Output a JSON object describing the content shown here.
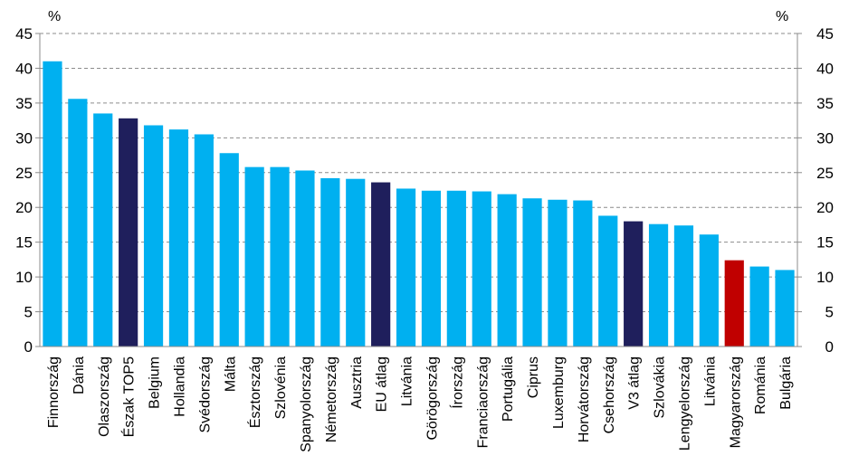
{
  "chart_data": {
    "type": "bar",
    "left_axis_unit": "%",
    "right_axis_unit": "%",
    "ylim": [
      0,
      45
    ],
    "yticks": [
      0,
      5,
      10,
      15,
      20,
      25,
      30,
      35,
      40,
      45
    ],
    "grid": "horizontal dashed",
    "categories": [
      "Finnország",
      "Dánia",
      "Olaszország",
      "Észak TOP5",
      "Belgium",
      "Hollandia",
      "Svédország",
      "Málta",
      "Észtország",
      "Szlovénia",
      "Spanyolország",
      "Németország",
      "Ausztria",
      "EU átlag",
      "Litvánia",
      "Görögország",
      "Írország",
      "Franciaország",
      "Portugália",
      "Ciprus",
      "Luxemburg",
      "Horvátország",
      "Csehország",
      "V3 átlag",
      "Szlovákia",
      "Lengyelország",
      "Litvánia",
      "Magyarország",
      "Románia",
      "Bulgária"
    ],
    "values": [
      41.0,
      35.6,
      33.5,
      32.8,
      31.8,
      31.2,
      30.5,
      27.8,
      25.8,
      25.8,
      25.3,
      24.2,
      24.1,
      23.6,
      22.7,
      22.4,
      22.4,
      22.3,
      21.9,
      21.3,
      21.1,
      21.0,
      18.8,
      18.0,
      17.6,
      17.4,
      16.1,
      12.4,
      11.5,
      11.0
    ],
    "bar_kind": [
      "country",
      "country",
      "country",
      "average",
      "country",
      "country",
      "country",
      "country",
      "country",
      "country",
      "country",
      "country",
      "country",
      "average",
      "country",
      "country",
      "country",
      "country",
      "country",
      "country",
      "country",
      "country",
      "country",
      "average",
      "country",
      "country",
      "country",
      "highlight",
      "country",
      "country"
    ],
    "colors": {
      "country": "#00B0F0",
      "average": "#1F1F5C",
      "highlight": "#C00000",
      "grid": "#8C8C8C",
      "axis": "#8C8C8C"
    }
  }
}
